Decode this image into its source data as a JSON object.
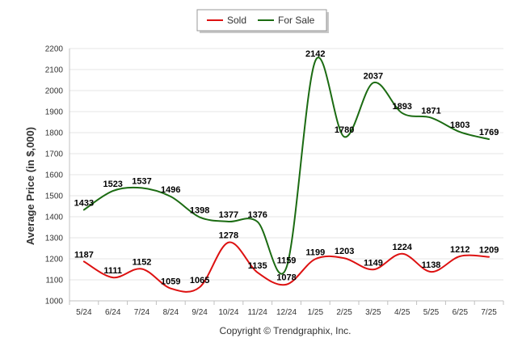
{
  "chart_data": {
    "type": "line",
    "title": "",
    "xlabel": "",
    "ylabel": "Average Price (in $,000)",
    "categories": [
      "5/24",
      "6/24",
      "7/24",
      "8/24",
      "9/24",
      "10/24",
      "11/24",
      "12/24",
      "1/25",
      "2/25",
      "3/25",
      "4/25",
      "5/25",
      "6/25",
      "7/25"
    ],
    "ylim": [
      1000,
      2200
    ],
    "yticks": [
      1000,
      1100,
      1200,
      1300,
      1400,
      1500,
      1600,
      1700,
      1800,
      1900,
      2000,
      2100,
      2200
    ],
    "grid": "horizontal",
    "legend_position": "top-center",
    "series": [
      {
        "name": "Sold",
        "color": "#dd1111",
        "values": [
          1187,
          1111,
          1152,
          1059,
          1065,
          1278,
          1135,
          1078,
          1199,
          1203,
          1149,
          1224,
          1138,
          1212,
          1209
        ]
      },
      {
        "name": "For Sale",
        "color": "#1b6b12",
        "values": [
          1433,
          1523,
          1537,
          1496,
          1398,
          1377,
          1376,
          1159,
          2142,
          1780,
          2037,
          1893,
          1871,
          1803,
          1769
        ]
      }
    ]
  },
  "footer": {
    "copyright": "Copyright © Trendgraphix, Inc."
  }
}
